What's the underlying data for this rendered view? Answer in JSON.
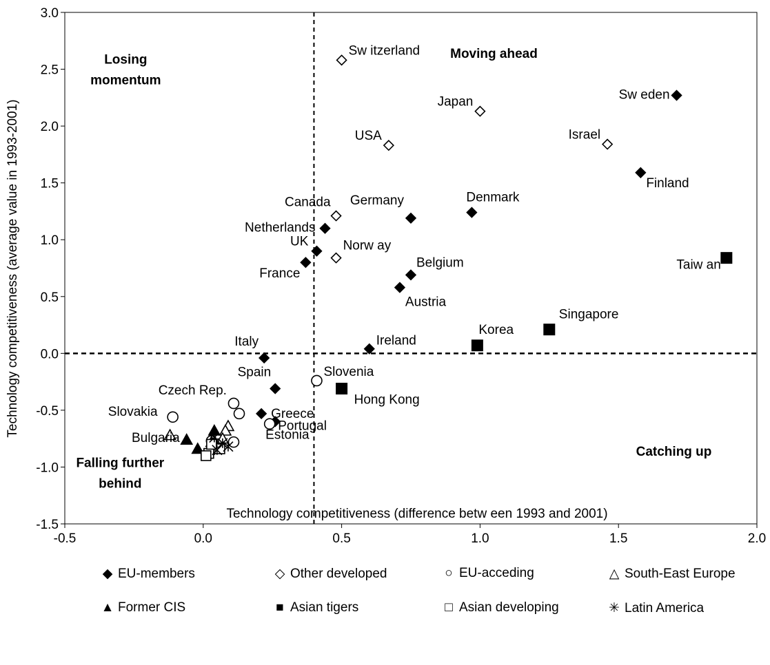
{
  "chart_data": {
    "type": "scatter",
    "title": "",
    "xlabel": "Technology competitiveness (difference betw een 1993 and 2001)",
    "ylabel": "Technology competitiveness (average value in 1993-2001)",
    "xlim": [
      -0.5,
      2.0
    ],
    "ylim": [
      -1.5,
      3.0
    ],
    "x_ticks": [
      "-0.5",
      "0.0",
      "0.5",
      "1.0",
      "1.5",
      "2.0"
    ],
    "y_ticks": [
      "-1.5",
      "-1.0",
      "-0.5",
      "0.0",
      "0.5",
      "1.0",
      "1.5",
      "2.0",
      "2.5",
      "3.0"
    ],
    "grid": false,
    "legend_position": "bottom",
    "reference_lines": {
      "vertical_x": 0.4,
      "horizontal_y": 0.0
    },
    "quadrant_labels": [
      {
        "lines": [
          "Losing",
          "momentum"
        ],
        "x": -0.28,
        "y": 2.55
      },
      {
        "lines": [
          "Moving ahead"
        ],
        "x": 1.05,
        "y": 2.6
      },
      {
        "lines": [
          "Falling further",
          "behind"
        ],
        "x": -0.3,
        "y": -1.0
      },
      {
        "lines": [
          "Catching up"
        ],
        "x": 1.7,
        "y": -0.9
      }
    ],
    "series": [
      {
        "name": "EU-members",
        "marker": "diamond-filled",
        "points": [
          {
            "label": "Sw eden",
            "x": 1.71,
            "y": 2.27
          },
          {
            "label": "Finland",
            "x": 1.58,
            "y": 1.59
          },
          {
            "label": "Denmark",
            "x": 0.97,
            "y": 1.24
          },
          {
            "label": "Germany",
            "x": 0.75,
            "y": 1.19
          },
          {
            "label": "Netherlands",
            "x": 0.44,
            "y": 1.1
          },
          {
            "label": "UK",
            "x": 0.41,
            "y": 0.9
          },
          {
            "label": "France",
            "x": 0.37,
            "y": 0.8
          },
          {
            "label": "Belgium",
            "x": 0.75,
            "y": 0.69
          },
          {
            "label": "Austria",
            "x": 0.71,
            "y": 0.58
          },
          {
            "label": "Ireland",
            "x": 0.6,
            "y": 0.04
          },
          {
            "label": "Italy",
            "x": 0.22,
            "y": -0.04
          },
          {
            "label": "Spain",
            "x": 0.26,
            "y": -0.31
          },
          {
            "label": "Greece",
            "x": 0.21,
            "y": -0.53
          },
          {
            "label": "Portugal",
            "x": 0.26,
            "y": -0.6
          }
        ]
      },
      {
        "name": "Other developed",
        "marker": "diamond-open",
        "points": [
          {
            "label": "Sw itzerland",
            "x": 0.5,
            "y": 2.58
          },
          {
            "label": "Japan",
            "x": 1.0,
            "y": 2.13
          },
          {
            "label": "Israel",
            "x": 1.46,
            "y": 1.84
          },
          {
            "label": "USA",
            "x": 0.67,
            "y": 1.83
          },
          {
            "label": "Canada",
            "x": 0.48,
            "y": 1.21
          },
          {
            "label": "Norw ay",
            "x": 0.48,
            "y": 0.84
          }
        ]
      },
      {
        "name": "EU-acceding",
        "marker": "circle-open",
        "points": [
          {
            "label": "Slovenia",
            "x": 0.41,
            "y": -0.24
          },
          {
            "label": "Czech Rep.",
            "x": 0.11,
            "y": -0.44
          },
          {
            "label": "",
            "x": 0.13,
            "y": -0.53
          },
          {
            "label": "Slovakia",
            "x": -0.11,
            "y": -0.56
          },
          {
            "label": "Estonia",
            "x": 0.24,
            "y": -0.62
          },
          {
            "label": "",
            "x": 0.11,
            "y": -0.78
          },
          {
            "label": "",
            "x": 0.05,
            "y": -0.8
          },
          {
            "label": "",
            "x": 0.03,
            "y": -0.77
          }
        ]
      },
      {
        "name": "South-East Europe",
        "marker": "triangle-open",
        "points": [
          {
            "label": "",
            "x": -0.12,
            "y": -0.72
          },
          {
            "label": "",
            "x": 0.09,
            "y": -0.64
          },
          {
            "label": "",
            "x": 0.08,
            "y": -0.68
          },
          {
            "label": "",
            "x": 0.07,
            "y": -0.75
          }
        ]
      },
      {
        "name": "Former CIS",
        "marker": "triangle-filled",
        "points": [
          {
            "label": "Bulgaria",
            "x": -0.06,
            "y": -0.76
          },
          {
            "label": "",
            "x": 0.04,
            "y": -0.68
          },
          {
            "label": "",
            "x": -0.02,
            "y": -0.84
          },
          {
            "label": "",
            "x": 0.03,
            "y": -0.78
          },
          {
            "label": "",
            "x": 0.02,
            "y": -0.85
          }
        ]
      },
      {
        "name": "Asian tigers",
        "marker": "square-filled",
        "points": [
          {
            "label": "Taiw an",
            "x": 1.89,
            "y": 0.84
          },
          {
            "label": "Singapore",
            "x": 1.25,
            "y": 0.21
          },
          {
            "label": "Korea",
            "x": 0.99,
            "y": 0.07
          },
          {
            "label": "Hong Kong",
            "x": 0.5,
            "y": -0.31
          }
        ]
      },
      {
        "name": "Asian developing",
        "marker": "square-open",
        "points": [
          {
            "label": "",
            "x": 0.02,
            "y": -0.88
          },
          {
            "label": "",
            "x": 0.06,
            "y": -0.84
          },
          {
            "label": "",
            "x": 0.03,
            "y": -0.8
          },
          {
            "label": "",
            "x": 0.01,
            "y": -0.9
          }
        ]
      },
      {
        "name": "Latin America",
        "marker": "star",
        "points": [
          {
            "label": "",
            "x": 0.07,
            "y": -0.79
          },
          {
            "label": "",
            "x": 0.04,
            "y": -0.74
          },
          {
            "label": "",
            "x": 0.09,
            "y": -0.82
          },
          {
            "label": "",
            "x": 0.05,
            "y": -0.85
          }
        ]
      }
    ]
  }
}
